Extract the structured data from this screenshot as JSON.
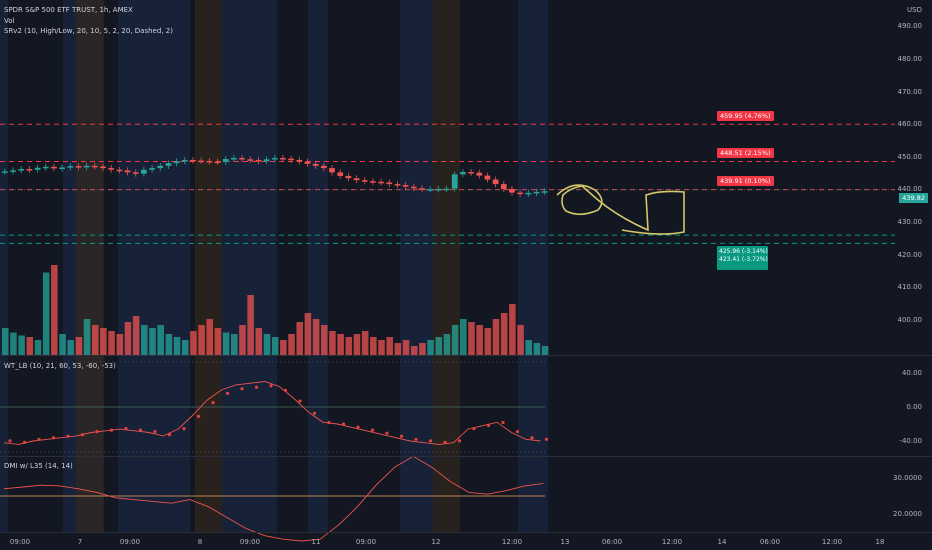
{
  "legend": {
    "symbol": "SPDR S&P 500 ETF TRUST, 1h, AMEX",
    "vol": "Vol",
    "srv2": "SRv2 (10, High/Low, 20, 10, 5, 2, 20, Dashed, 2)",
    "wt": "WT_LB (10, 21, 60, 53, -60, -53)",
    "dmi": "DMI w/ L35 (14, 14)"
  },
  "currency": "USD",
  "price_axis": [
    "490.00",
    "480.00",
    "470.00",
    "460.00",
    "450.00",
    "440.00",
    "430.00",
    "420.00",
    "410.00",
    "400.00"
  ],
  "current_price": "439.82",
  "wt_axis": [
    "40.00",
    "0.00",
    "-40.00"
  ],
  "dmi_axis": [
    "30.0000",
    "20.0000"
  ],
  "time_axis": [
    "09:00",
    "7",
    "09:00",
    "8",
    "09:00",
    "11",
    "09:00",
    "12",
    "12:00",
    "13",
    "06:00",
    "12:00",
    "14",
    "06:00",
    "12:00",
    "18"
  ],
  "tags": {
    "r1": "459.95 (4.76%)",
    "r2": "448.51 (2.15%)",
    "r3": "439.91 (0.10%)",
    "s1a": "425.96 (-3.14%)",
    "s1b": "423.41 (-3.72%)"
  },
  "colors": {
    "bg": "#131722",
    "up": "#26a69a",
    "down": "#ef5350",
    "resistance": "#f23645",
    "support": "#089981",
    "annotation": "#d4c86b"
  },
  "chart_data": {
    "type": "candlestick",
    "price_range": [
      395,
      495
    ],
    "levels": {
      "resistance": [
        459.95,
        448.51,
        439.91
      ],
      "support": [
        425.96,
        423.41
      ]
    },
    "closes": [
      445.5,
      445.8,
      446.2,
      446.0,
      446.6,
      446.9,
      446.4,
      446.7,
      447.1,
      446.8,
      447.2,
      447.0,
      446.5,
      446.0,
      445.8,
      445.2,
      444.8,
      446.0,
      446.5,
      447.2,
      448.0,
      448.6,
      449.0,
      448.8,
      448.7,
      448.5,
      448.4,
      449.3,
      449.6,
      449.2,
      449.0,
      448.6,
      449.2,
      449.6,
      449.4,
      449.0,
      448.5,
      447.8,
      447.2,
      446.5,
      445.2,
      444.1,
      443.4,
      442.8,
      442.5,
      442.3,
      442.1,
      441.6,
      441.3,
      440.8,
      440.3,
      440.0,
      440.0,
      440.1,
      440.2,
      444.6,
      445.3,
      445.1,
      444.2,
      443.0,
      441.6,
      440.1,
      439.0,
      438.6,
      438.9,
      439.2,
      439.4
    ],
    "volumes": [
      18,
      15,
      13,
      12,
      10,
      55,
      60,
      14,
      10,
      12,
      24,
      20,
      18,
      16,
      14,
      22,
      26,
      20,
      18,
      20,
      14,
      12,
      10,
      16,
      20,
      24,
      18,
      15,
      14,
      20,
      40,
      18,
      14,
      12,
      10,
      14,
      22,
      28,
      24,
      20,
      16,
      14,
      12,
      14,
      16,
      12,
      10,
      12,
      8,
      10,
      6,
      8,
      10,
      12,
      14,
      20,
      24,
      22,
      20,
      18,
      24,
      28,
      34,
      20,
      10,
      8,
      6
    ]
  }
}
